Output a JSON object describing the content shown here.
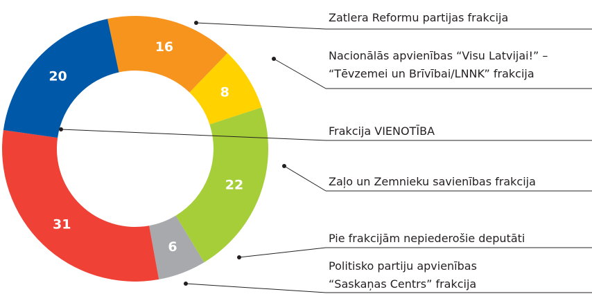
{
  "chart_data": {
    "type": "donut",
    "categories": [
      [
        "Zatlera Reformu partijas frakcija"
      ],
      [
        "Nacionālās apvienības “Visu Latvijai!” –",
        "“Tēvzemei un Brīvībai/LNNK” frakcija"
      ],
      [
        "Zaļo un Zemnieku savienības frakcija"
      ],
      [
        "Pie frakcijām nepiederošie deputāti"
      ],
      [
        "Politisko partiju apvienības",
        "“Saskaņas Centrs” frakcija"
      ],
      [
        "Frakcija VIENOTĪBA"
      ]
    ],
    "values": [
      16,
      8,
      22,
      6,
      31,
      20
    ],
    "colors": [
      "#f7941d",
      "#ffd200",
      "#a6ce39",
      "#a7a9ac",
      "#ef4136",
      "#0058a8"
    ]
  }
}
